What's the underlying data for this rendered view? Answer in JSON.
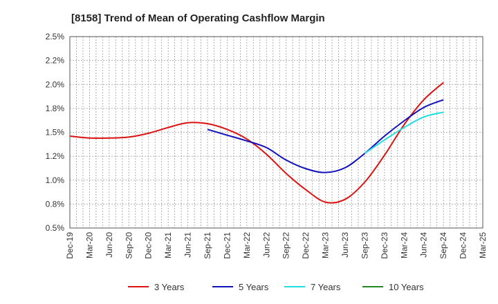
{
  "chart_data": {
    "type": "line",
    "title": "[8158]  Trend of Mean of Operating Cashflow Margin",
    "xlabel": "",
    "ylabel": "",
    "ylim": [
      0.5,
      2.5
    ],
    "y_ticks": [
      "0.5%",
      "0.8%",
      "1.0%",
      "1.2%",
      "1.5%",
      "1.8%",
      "2.0%",
      "2.2%",
      "2.5%"
    ],
    "categories": [
      "Dec-19",
      "Mar-20",
      "Jun-20",
      "Sep-20",
      "Dec-20",
      "Mar-21",
      "Jun-21",
      "Sep-21",
      "Dec-21",
      "Mar-22",
      "Jun-22",
      "Sep-22",
      "Dec-22",
      "Mar-23",
      "Jun-23",
      "Sep-23",
      "Dec-23",
      "Mar-24",
      "Jun-24",
      "Sep-24",
      "Dec-24",
      "Mar-25"
    ],
    "grid": true,
    "legend_position": "bottom",
    "series": [
      {
        "name": "3 Years",
        "color": "#dd1111",
        "values": [
          1.46,
          1.44,
          1.44,
          1.45,
          1.49,
          1.55,
          1.6,
          1.59,
          1.53,
          1.43,
          1.27,
          1.07,
          0.9,
          0.77,
          0.8,
          0.98,
          1.26,
          1.58,
          1.84,
          2.02,
          null,
          null
        ]
      },
      {
        "name": "5 Years",
        "color": "#1111bb",
        "values": [
          null,
          null,
          null,
          null,
          null,
          null,
          null,
          1.53,
          1.47,
          1.41,
          1.34,
          1.21,
          1.12,
          1.08,
          1.13,
          1.28,
          1.46,
          1.62,
          1.76,
          1.84,
          null,
          null
        ]
      },
      {
        "name": "7 Years",
        "color": "#22dddd",
        "values": [
          null,
          null,
          null,
          null,
          null,
          null,
          null,
          null,
          null,
          null,
          null,
          null,
          null,
          null,
          null,
          1.28,
          1.42,
          1.55,
          1.66,
          1.71,
          null,
          null
        ]
      },
      {
        "name": "10 Years",
        "color": "#228822",
        "values": [
          null,
          null,
          null,
          null,
          null,
          null,
          null,
          null,
          null,
          null,
          null,
          null,
          null,
          null,
          null,
          null,
          null,
          null,
          null,
          null,
          null,
          null
        ]
      }
    ]
  }
}
